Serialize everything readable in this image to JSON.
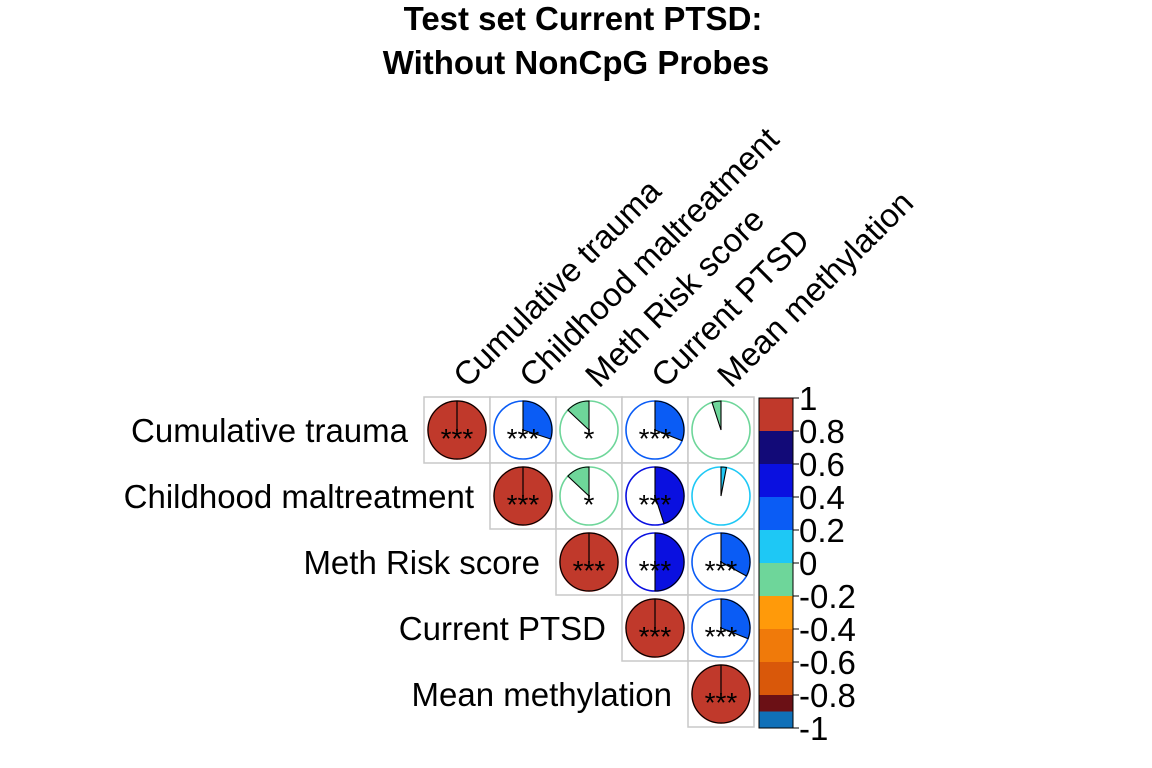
{
  "chart_data": {
    "type": "heatmap",
    "subtype": "correlation-pie-upper-triangle",
    "title_lines": [
      "Test set Current PTSD:",
      "Without NonCpG Probes"
    ],
    "variables": [
      "Cumulative trauma",
      "Childhood maltreatment",
      "Meth Risk score",
      "Current PTSD",
      "Mean methylation"
    ],
    "cells": [
      {
        "row": 0,
        "col": 0,
        "value": 1.0,
        "sig": "***"
      },
      {
        "row": 0,
        "col": 1,
        "value": 0.3,
        "sig": "***"
      },
      {
        "row": 0,
        "col": 2,
        "value": -0.13,
        "sig": "*"
      },
      {
        "row": 0,
        "col": 3,
        "value": 0.31,
        "sig": "***"
      },
      {
        "row": 0,
        "col": 4,
        "value": -0.05,
        "sig": ""
      },
      {
        "row": 1,
        "col": 1,
        "value": 1.0,
        "sig": "***"
      },
      {
        "row": 1,
        "col": 2,
        "value": -0.13,
        "sig": "*"
      },
      {
        "row": 1,
        "col": 3,
        "value": 0.45,
        "sig": "***"
      },
      {
        "row": 1,
        "col": 4,
        "value": 0.03,
        "sig": ""
      },
      {
        "row": 2,
        "col": 2,
        "value": 1.0,
        "sig": "***"
      },
      {
        "row": 2,
        "col": 3,
        "value": 0.5,
        "sig": "***"
      },
      {
        "row": 2,
        "col": 4,
        "value": 0.33,
        "sig": "***"
      },
      {
        "row": 3,
        "col": 3,
        "value": 1.0,
        "sig": "***"
      },
      {
        "row": 3,
        "col": 4,
        "value": 0.31,
        "sig": "***"
      },
      {
        "row": 4,
        "col": 4,
        "value": 1.0,
        "sig": "***"
      }
    ],
    "colorbar": {
      "ticks": [
        "1",
        "0.8",
        "0.6",
        "0.4",
        "0.2",
        "0",
        "-0.2",
        "-0.4",
        "-0.6",
        "-0.8",
        "-1"
      ],
      "bins": [
        {
          "from": 0.8,
          "to": 1.0,
          "color": "#C0392B"
        },
        {
          "from": 0.6,
          "to": 0.8,
          "color": "#120A78"
        },
        {
          "from": 0.4,
          "to": 0.6,
          "color": "#0A10E0"
        },
        {
          "from": 0.2,
          "to": 0.4,
          "color": "#0A5CF5"
        },
        {
          "from": 0.0,
          "to": 0.2,
          "color": "#1EC8F5"
        },
        {
          "from": -0.2,
          "to": 0.0,
          "color": "#6ED69A"
        },
        {
          "from": -0.4,
          "to": -0.2,
          "color": "#FF9A0A"
        },
        {
          "from": -0.6,
          "to": -0.4,
          "color": "#F07A0A"
        },
        {
          "from": -0.8,
          "to": -0.6,
          "color": "#D9580A"
        },
        {
          "from": -1.0,
          "to": -0.8,
          "color": "#6B1015"
        },
        {
          "from": -1.0,
          "to": -1.0,
          "color": "#1070B8"
        }
      ]
    },
    "legend_position": "right",
    "grid": true
  }
}
